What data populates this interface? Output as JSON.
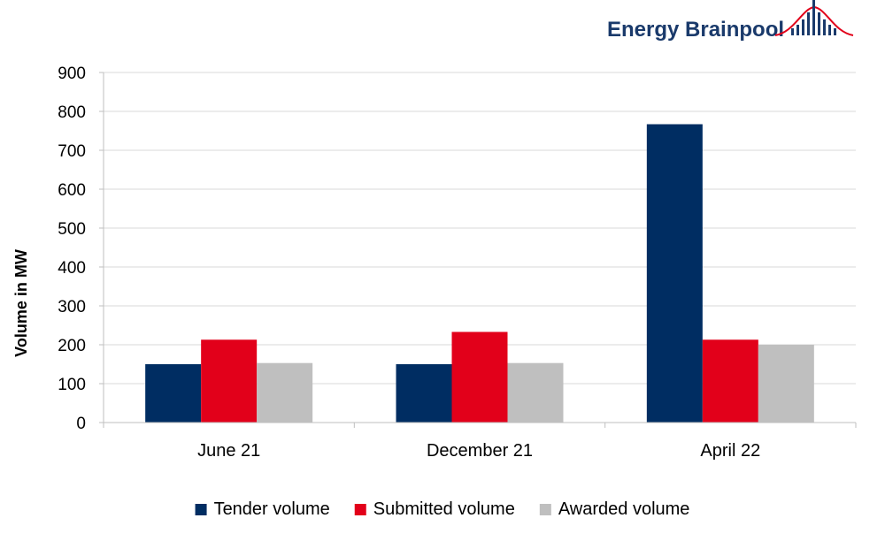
{
  "brand": {
    "name": "Energy Brainpool",
    "text_color": "#1a3a6b",
    "accent": "#e2001a"
  },
  "chart_data": {
    "type": "bar",
    "categories": [
      "June 21",
      "December 21",
      "April 22"
    ],
    "series": [
      {
        "name": "Tender volume",
        "color": "#002d62",
        "values": [
          150,
          150,
          767
        ]
      },
      {
        "name": "Submitted volume",
        "color": "#e2001a",
        "values": [
          213,
          233,
          213
        ]
      },
      {
        "name": "Awarded volume",
        "color": "#bfbfbf",
        "values": [
          153,
          153,
          200
        ]
      }
    ],
    "title": "",
    "xlabel": "",
    "ylabel": "Volume in MW",
    "ylim": [
      0,
      900
    ],
    "yticks": [
      0,
      100,
      200,
      300,
      400,
      500,
      600,
      700,
      800,
      900
    ],
    "grid": true,
    "legend": "bottom"
  }
}
